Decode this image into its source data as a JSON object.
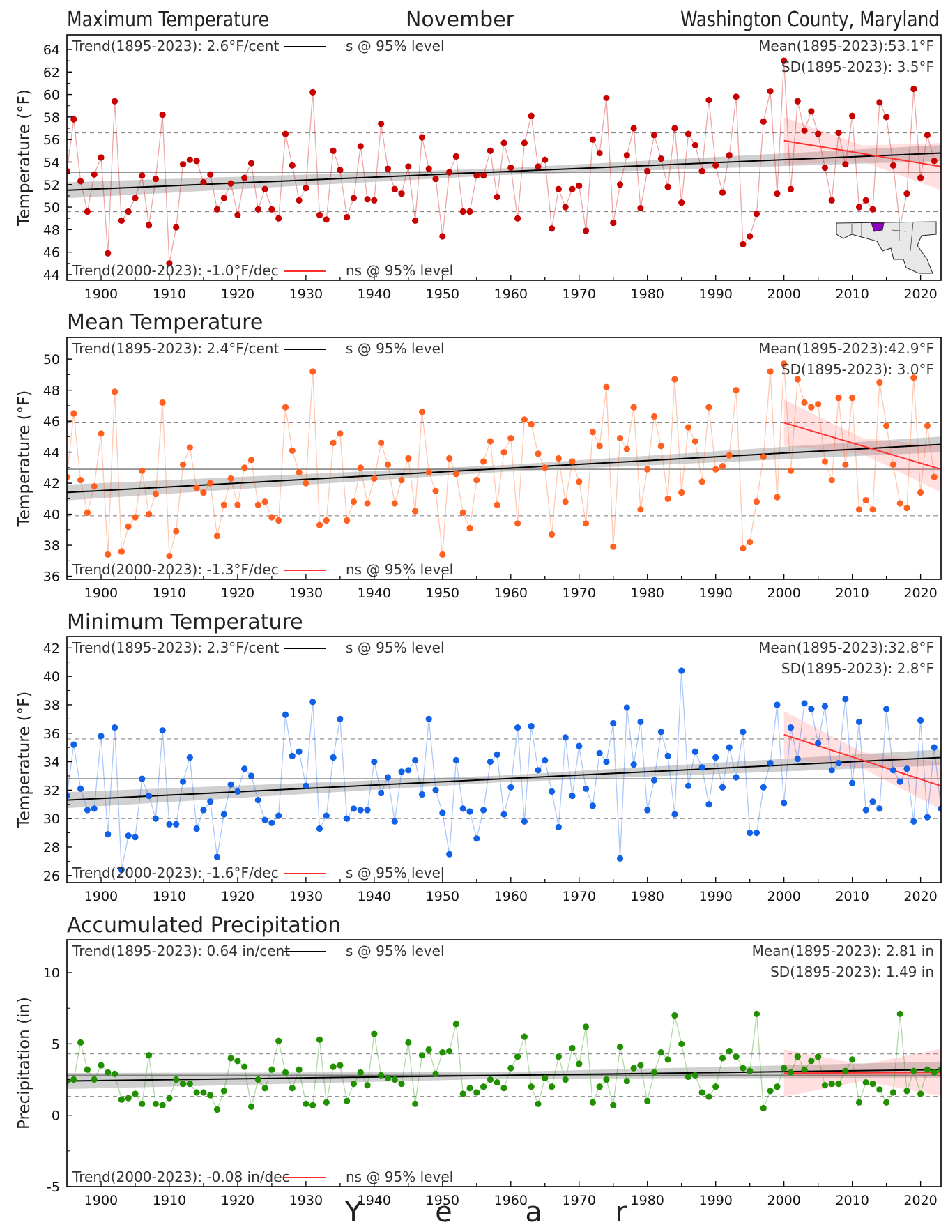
{
  "header": {
    "left": "Maximum Temperature",
    "center": "November",
    "right": "Washington County, Maryland"
  },
  "xlabel": "Y e a r",
  "colors": {
    "max": "#c80000",
    "mean": "#ff6020",
    "min": "#1060e8",
    "precip": "#209000",
    "trend_long": "#000000",
    "trend_recent": "#ff3030"
  },
  "chart_data": [
    {
      "type": "line",
      "title": "Maximum Temperature",
      "ylabel": "Temperature (°F)",
      "xlim": [
        1895,
        2023
      ],
      "ylim": [
        43.5,
        65.3
      ],
      "yticks": [
        44,
        46,
        48,
        50,
        52,
        54,
        56,
        58,
        60,
        62,
        64
      ],
      "xticks": [
        1900,
        1910,
        1920,
        1930,
        1940,
        1950,
        1960,
        1970,
        1980,
        1990,
        2000,
        2010,
        2020
      ],
      "trend_long_label": "Trend(1895-2023):  2.6°F/cent",
      "trend_long_sig": "s @ 95% level",
      "trend_recent_label": "Trend(2000-2023): -1.0°F/dec",
      "trend_recent_sig": "ns @ 95% level",
      "mean_label": "Mean(1895-2023):53.1°F",
      "sd_label": "SD(1895-2023): 3.5°F",
      "mean": 53.1,
      "sd": 3.5,
      "trend_long": [
        [
          1895,
          51.5
        ],
        [
          2023,
          54.8
        ]
      ],
      "trend_recent": [
        [
          2000,
          55.9
        ],
        [
          2023,
          53.6
        ]
      ],
      "x_start": 1895,
      "values": [
        53.2,
        57.8,
        52.3,
        49.6,
        52.9,
        54.4,
        45.9,
        59.4,
        48.8,
        49.6,
        50.8,
        52.8,
        48.4,
        52.5,
        58.2,
        45.0,
        48.2,
        53.8,
        54.2,
        54.1,
        52.2,
        52.9,
        49.8,
        50.8,
        52.1,
        49.3,
        52.6,
        53.9,
        49.8,
        51.6,
        49.8,
        49.0,
        56.5,
        53.7,
        50.6,
        51.7,
        60.2,
        49.3,
        48.9,
        55.0,
        53.3,
        49.1,
        50.8,
        55.4,
        50.7,
        50.6,
        57.4,
        53.4,
        51.6,
        51.2,
        53.6,
        48.8,
        56.2,
        53.4,
        52.5,
        47.4,
        53.1,
        54.5,
        49.6,
        49.6,
        52.8,
        52.8,
        55.0,
        50.9,
        55.7,
        53.5,
        49.0,
        55.7,
        58.1,
        53.6,
        54.2,
        48.1,
        51.6,
        50.0,
        51.6,
        51.9,
        47.9,
        56.0,
        54.8,
        59.7,
        48.6,
        52.0,
        54.6,
        57.0,
        49.9,
        53.2,
        56.4,
        54.3,
        51.8,
        57.0,
        50.4,
        56.5,
        55.5,
        53.2,
        59.5,
        53.7,
        51.3,
        54.6,
        59.8,
        46.7,
        47.4,
        49.4,
        57.6,
        60.3,
        51.2,
        63.0,
        51.6,
        59.4,
        56.8,
        58.5,
        56.5,
        53.5,
        50.6,
        56.6,
        53.8,
        58.1,
        50.0,
        50.6,
        49.8,
        59.3,
        58.0,
        53.7,
        48.3,
        51.2,
        60.5,
        52.6,
        56.4,
        54.1
      ]
    },
    {
      "type": "line",
      "title": "Mean Temperature",
      "ylabel": "Temperature (°F)",
      "xlim": [
        1895,
        2023
      ],
      "ylim": [
        35.8,
        51.4
      ],
      "yticks": [
        36,
        38,
        40,
        42,
        44,
        46,
        48,
        50
      ],
      "xticks": [
        1900,
        1910,
        1920,
        1930,
        1940,
        1950,
        1960,
        1970,
        1980,
        1990,
        2000,
        2010,
        2020
      ],
      "trend_long_label": "Trend(1895-2023):  2.4°F/cent",
      "trend_long_sig": "s @ 95% level",
      "trend_recent_label": "Trend(2000-2023): -1.3°F/dec",
      "trend_recent_sig": "ns @ 95% level",
      "mean_label": "Mean(1895-2023):42.9°F",
      "sd_label": "SD(1895-2023): 3.0°F",
      "mean": 42.9,
      "sd": 3.0,
      "trend_long": [
        [
          1895,
          41.4
        ],
        [
          2023,
          44.5
        ]
      ],
      "trend_recent": [
        [
          2000,
          45.9
        ],
        [
          2023,
          42.9
        ]
      ],
      "x_start": 1895,
      "values": [
        42.4,
        46.5,
        42.2,
        40.1,
        41.8,
        45.2,
        37.4,
        47.9,
        37.6,
        39.2,
        39.8,
        42.8,
        40.0,
        41.3,
        47.2,
        37.3,
        38.9,
        43.2,
        44.3,
        41.7,
        41.4,
        42.0,
        38.6,
        40.6,
        42.3,
        40.6,
        43.0,
        43.5,
        40.6,
        40.8,
        39.8,
        39.6,
        46.9,
        44.1,
        42.7,
        42.0,
        49.2,
        39.3,
        39.6,
        44.6,
        45.2,
        39.6,
        40.8,
        43.0,
        40.7,
        42.3,
        44.6,
        43.2,
        40.7,
        42.2,
        43.6,
        40.2,
        46.6,
        42.7,
        41.5,
        37.4,
        43.6,
        42.6,
        40.1,
        39.1,
        42.2,
        43.4,
        44.7,
        40.6,
        44.0,
        44.9,
        39.4,
        46.1,
        45.8,
        43.9,
        43.0,
        38.7,
        43.6,
        40.8,
        43.4,
        42.1,
        39.4,
        45.3,
        44.4,
        48.2,
        37.9,
        44.9,
        44.2,
        46.9,
        40.3,
        42.9,
        46.3,
        44.4,
        41.0,
        48.7,
        41.4,
        45.6,
        44.7,
        42.1,
        46.9,
        42.9,
        43.1,
        43.8,
        48.0,
        37.8,
        38.2,
        40.8,
        43.7,
        49.2,
        41.1,
        49.7,
        42.8,
        48.7,
        47.2,
        46.9,
        47.1,
        43.4,
        42.2,
        47.5,
        43.2,
        47.5,
        40.3,
        40.9,
        40.3,
        48.5,
        45.7,
        43.2,
        40.7,
        40.4,
        48.8,
        41.4,
        45.7,
        42.4
      ]
    },
    {
      "type": "line",
      "title": "Minimum Temperature",
      "ylabel": "Temperature (°F)",
      "xlim": [
        1895,
        2023
      ],
      "ylim": [
        25.5,
        42.8
      ],
      "yticks": [
        26,
        28,
        30,
        32,
        34,
        36,
        38,
        40,
        42
      ],
      "xticks": [
        1900,
        1910,
        1920,
        1930,
        1940,
        1950,
        1960,
        1970,
        1980,
        1990,
        2000,
        2010,
        2020
      ],
      "trend_long_label": "Trend(1895-2023):  2.3°F/cent",
      "trend_long_sig": "s @ 95% level",
      "trend_recent_label": "Trend(2000-2023): -1.6°F/dec",
      "trend_recent_sig": "s @ 95% level",
      "mean_label": "Mean(1895-2023):32.8°F",
      "sd_label": "SD(1895-2023): 2.8°F",
      "mean": 32.8,
      "sd": 2.8,
      "trend_long": [
        [
          1895,
          31.3
        ],
        [
          2023,
          34.3
        ]
      ],
      "trend_recent": [
        [
          2000,
          35.9
        ],
        [
          2023,
          32.3
        ]
      ],
      "x_start": 1895,
      "values": [
        31.6,
        35.2,
        32.1,
        30.6,
        30.7,
        35.8,
        28.9,
        36.4,
        26.4,
        28.8,
        28.7,
        32.8,
        31.6,
        30.0,
        36.2,
        29.6,
        29.6,
        32.6,
        34.3,
        29.3,
        30.6,
        31.2,
        27.3,
        30.3,
        32.4,
        31.9,
        33.5,
        33.0,
        31.3,
        29.9,
        29.7,
        30.2,
        37.3,
        34.4,
        34.7,
        32.3,
        38.2,
        29.3,
        30.2,
        34.3,
        37.0,
        30.0,
        30.7,
        30.6,
        30.6,
        34.0,
        31.8,
        32.9,
        29.8,
        33.3,
        33.4,
        34.1,
        31.7,
        37.0,
        32.0,
        30.4,
        27.5,
        34.1,
        30.7,
        30.5,
        28.6,
        30.6,
        34.0,
        34.5,
        30.3,
        32.2,
        36.4,
        29.8,
        36.5,
        33.4,
        34.1,
        31.9,
        29.4,
        35.7,
        31.6,
        35.1,
        32.1,
        30.9,
        34.6,
        34.0,
        36.7,
        27.2,
        37.8,
        33.8,
        36.8,
        30.6,
        32.7,
        36.1,
        34.4,
        30.3,
        40.4,
        32.3,
        34.7,
        33.6,
        31.0,
        34.3,
        32.2,
        35.0,
        32.9,
        36.1,
        29.0,
        29.0,
        32.2,
        33.9,
        38.0,
        31.1,
        36.4,
        34.2,
        38.1,
        37.7,
        35.3,
        37.9,
        33.4,
        33.9,
        38.4,
        32.5,
        36.8,
        30.6,
        31.2,
        30.7,
        37.7,
        33.4,
        32.6,
        33.5,
        29.8,
        36.9,
        30.1,
        35.0,
        30.7
      ]
    },
    {
      "type": "line",
      "title": "Accumulated Precipitation",
      "ylabel": "Precipitation (in)",
      "xlim": [
        1895,
        2023
      ],
      "ylim": [
        -5,
        12.3
      ],
      "yticks": [
        -5,
        0,
        5,
        10
      ],
      "xticks": [
        1900,
        1910,
        1920,
        1930,
        1940,
        1950,
        1960,
        1970,
        1980,
        1990,
        2000,
        2010,
        2020
      ],
      "trend_long_label": "Trend(1895-2023):  0.64 in/cent",
      "trend_long_sig": "s @ 95% level",
      "trend_recent_label": "Trend(2000-2023): -0.08 in/dec",
      "trend_recent_sig": "ns @ 95% level",
      "mean_label": "Mean(1895-2023): 2.81 in",
      "sd_label": "SD(1895-2023): 1.49 in",
      "mean": 2.81,
      "sd": 1.49,
      "trend_long": [
        [
          1895,
          2.4
        ],
        [
          2023,
          3.2
        ]
      ],
      "trend_recent": [
        [
          2000,
          2.95
        ],
        [
          2023,
          3.0
        ]
      ],
      "x_start": 1895,
      "values": [
        2.4,
        2.5,
        5.1,
        3.2,
        2.5,
        3.5,
        3.0,
        2.9,
        1.1,
        1.2,
        1.5,
        0.8,
        4.2,
        0.8,
        0.7,
        1.2,
        2.5,
        2.2,
        2.2,
        1.6,
        1.6,
        1.4,
        0.4,
        1.7,
        4.0,
        3.8,
        3.4,
        0.6,
        2.5,
        1.9,
        3.2,
        5.2,
        3.0,
        1.9,
        3.2,
        0.8,
        0.7,
        5.3,
        0.9,
        3.4,
        3.5,
        1.0,
        2.2,
        3.0,
        2.1,
        5.7,
        2.8,
        2.6,
        2.5,
        2.2,
        5.1,
        0.8,
        4.2,
        4.6,
        2.9,
        4.4,
        4.5,
        6.4,
        1.5,
        1.9,
        1.6,
        2.0,
        2.5,
        2.3,
        1.9,
        3.3,
        4.1,
        5.5,
        2.0,
        0.8,
        2.6,
        2.0,
        4.1,
        2.5,
        4.7,
        3.6,
        6.2,
        0.9,
        2.0,
        2.5,
        0.7,
        4.8,
        2.4,
        3.3,
        3.5,
        1.0,
        3.0,
        4.4,
        3.9,
        7.0,
        5.0,
        2.7,
        2.8,
        1.6,
        1.3,
        2.0,
        4.0,
        4.5,
        4.1,
        3.3,
        3.1,
        7.1,
        0.5,
        1.7,
        2.0,
        3.3,
        3.0,
        4.1,
        3.2,
        3.8,
        4.1,
        2.1,
        2.2,
        2.2,
        3.1,
        3.9,
        0.9,
        2.3,
        2.2,
        1.8,
        0.9,
        1.6,
        7.1,
        1.7,
        3.1,
        1.5,
        3.2,
        3.0,
        3.2
      ]
    }
  ]
}
